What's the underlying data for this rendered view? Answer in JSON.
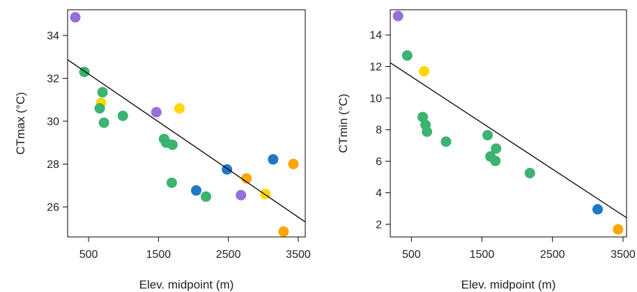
{
  "chart_data": [
    {
      "type": "scatter",
      "xlabel": "Elev. midpoint (m)",
      "ylabel": "CTmax (°C)",
      "xlim": [
        200,
        3600
      ],
      "ylim": [
        24.6,
        35.2
      ],
      "x_ticks": [
        500,
        1500,
        2500,
        3500
      ],
      "y_ticks": [
        26,
        28,
        30,
        32,
        34
      ],
      "points": [
        {
          "x": 310,
          "y": 34.85,
          "color": "#9370DB"
        },
        {
          "x": 440,
          "y": 32.3,
          "color": "#3CB371"
        },
        {
          "x": 700,
          "y": 31.35,
          "color": "#3CB371"
        },
        {
          "x": 680,
          "y": 30.85,
          "color": "#FFD700"
        },
        {
          "x": 660,
          "y": 30.6,
          "color": "#3CB371"
        },
        {
          "x": 720,
          "y": 29.93,
          "color": "#3CB371"
        },
        {
          "x": 990,
          "y": 30.25,
          "color": "#3CB371"
        },
        {
          "x": 1470,
          "y": 30.42,
          "color": "#9370DB"
        },
        {
          "x": 1800,
          "y": 30.6,
          "color": "#FFD700"
        },
        {
          "x": 1580,
          "y": 29.17,
          "color": "#3CB371"
        },
        {
          "x": 1610,
          "y": 29.0,
          "color": "#3CB371"
        },
        {
          "x": 1700,
          "y": 28.9,
          "color": "#3CB371"
        },
        {
          "x": 1690,
          "y": 27.13,
          "color": "#3CB371"
        },
        {
          "x": 2040,
          "y": 26.77,
          "color": "#1E78C8"
        },
        {
          "x": 2180,
          "y": 26.48,
          "color": "#3CB371"
        },
        {
          "x": 2480,
          "y": 27.75,
          "color": "#1E78C8"
        },
        {
          "x": 2760,
          "y": 27.33,
          "color": "#FFA500"
        },
        {
          "x": 2680,
          "y": 26.55,
          "color": "#9370DB"
        },
        {
          "x": 3030,
          "y": 26.6,
          "color": "#FFD700"
        },
        {
          "x": 3140,
          "y": 28.22,
          "color": "#1E78C8"
        },
        {
          "x": 3430,
          "y": 28.0,
          "color": "#FFA500"
        },
        {
          "x": 3290,
          "y": 24.85,
          "color": "#FFA500"
        }
      ],
      "trend_line": {
        "x": [
          200,
          3600
        ],
        "y": [
          32.87,
          25.3
        ]
      }
    },
    {
      "type": "scatter",
      "xlabel": "Elev. midpoint (m)",
      "ylabel": "CTmin (°C)",
      "xlim": [
        200,
        3550
      ],
      "ylim": [
        1.2,
        15.6
      ],
      "x_ticks": [
        500,
        1500,
        2500,
        3500
      ],
      "y_ticks": [
        2,
        4,
        6,
        8,
        10,
        12,
        14
      ],
      "points": [
        {
          "x": 310,
          "y": 15.2,
          "color": "#9370DB"
        },
        {
          "x": 440,
          "y": 12.7,
          "color": "#3CB371"
        },
        {
          "x": 680,
          "y": 11.7,
          "color": "#FFD700"
        },
        {
          "x": 660,
          "y": 8.8,
          "color": "#3CB371"
        },
        {
          "x": 700,
          "y": 8.3,
          "color": "#3CB371"
        },
        {
          "x": 720,
          "y": 7.87,
          "color": "#3CB371"
        },
        {
          "x": 990,
          "y": 7.24,
          "color": "#3CB371"
        },
        {
          "x": 1580,
          "y": 7.65,
          "color": "#3CB371"
        },
        {
          "x": 1700,
          "y": 6.8,
          "color": "#3CB371"
        },
        {
          "x": 1620,
          "y": 6.3,
          "color": "#3CB371"
        },
        {
          "x": 1690,
          "y": 6.02,
          "color": "#3CB371"
        },
        {
          "x": 2180,
          "y": 5.25,
          "color": "#3CB371"
        },
        {
          "x": 3140,
          "y": 2.95,
          "color": "#1E78C8"
        },
        {
          "x": 3430,
          "y": 1.68,
          "color": "#FFA500"
        }
      ],
      "trend_line": {
        "x": [
          200,
          3550
        ],
        "y": [
          12.24,
          2.42
        ]
      }
    }
  ]
}
